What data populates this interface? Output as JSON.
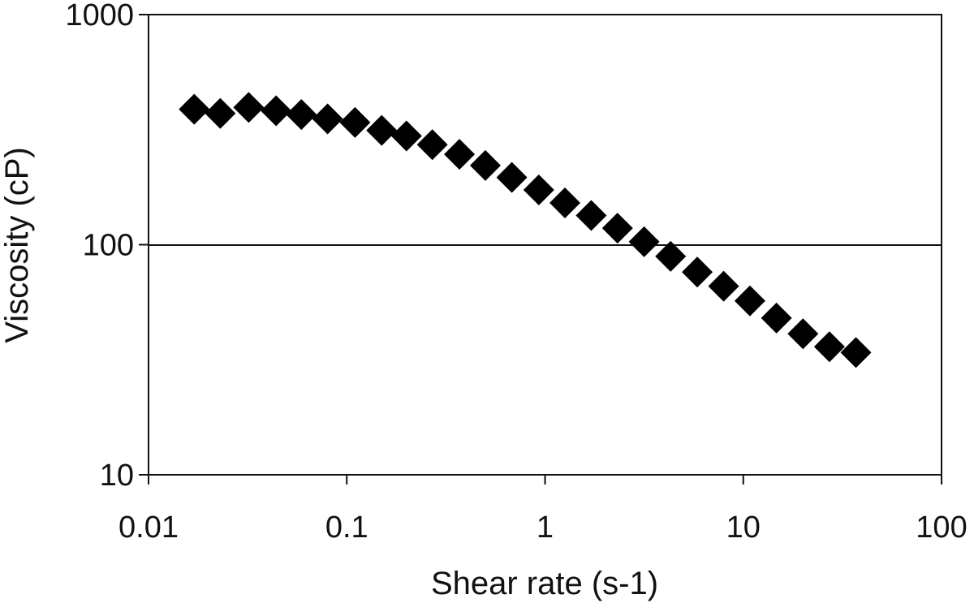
{
  "chart_data": {
    "type": "scatter",
    "title": "",
    "xlabel": "Shear rate (s-1)",
    "ylabel": "Viscosity (cP)",
    "x_scale": "log",
    "y_scale": "log",
    "xlim": [
      0.01,
      100
    ],
    "ylim": [
      10,
      1000
    ],
    "x_ticks": [
      0.01,
      0.1,
      1,
      10,
      100
    ],
    "x_tick_labels": [
      "0.01",
      "0.1",
      "1",
      "10",
      "100"
    ],
    "y_ticks": [
      10,
      100,
      1000
    ],
    "y_tick_labels": [
      "10",
      "100",
      "1000"
    ],
    "grid": "horizontal major gridline at 100",
    "legend": "none",
    "marker": "diamond",
    "marker_color": "#000000",
    "series": [
      {
        "x": [
          0.017,
          0.023,
          0.032,
          0.044,
          0.059,
          0.08,
          0.11,
          0.15,
          0.2,
          0.27,
          0.37,
          0.5,
          0.68,
          0.93,
          1.26,
          1.71,
          2.32,
          3.16,
          4.3,
          5.86,
          7.96,
          10.8,
          14.7,
          20,
          27.2,
          37
        ],
        "y": [
          388,
          372,
          395,
          382,
          368,
          352,
          340,
          314,
          297,
          272,
          247,
          221,
          196,
          173,
          152,
          134,
          118,
          103,
          89,
          76,
          66,
          57,
          48,
          41,
          36,
          34
        ]
      }
    ]
  }
}
